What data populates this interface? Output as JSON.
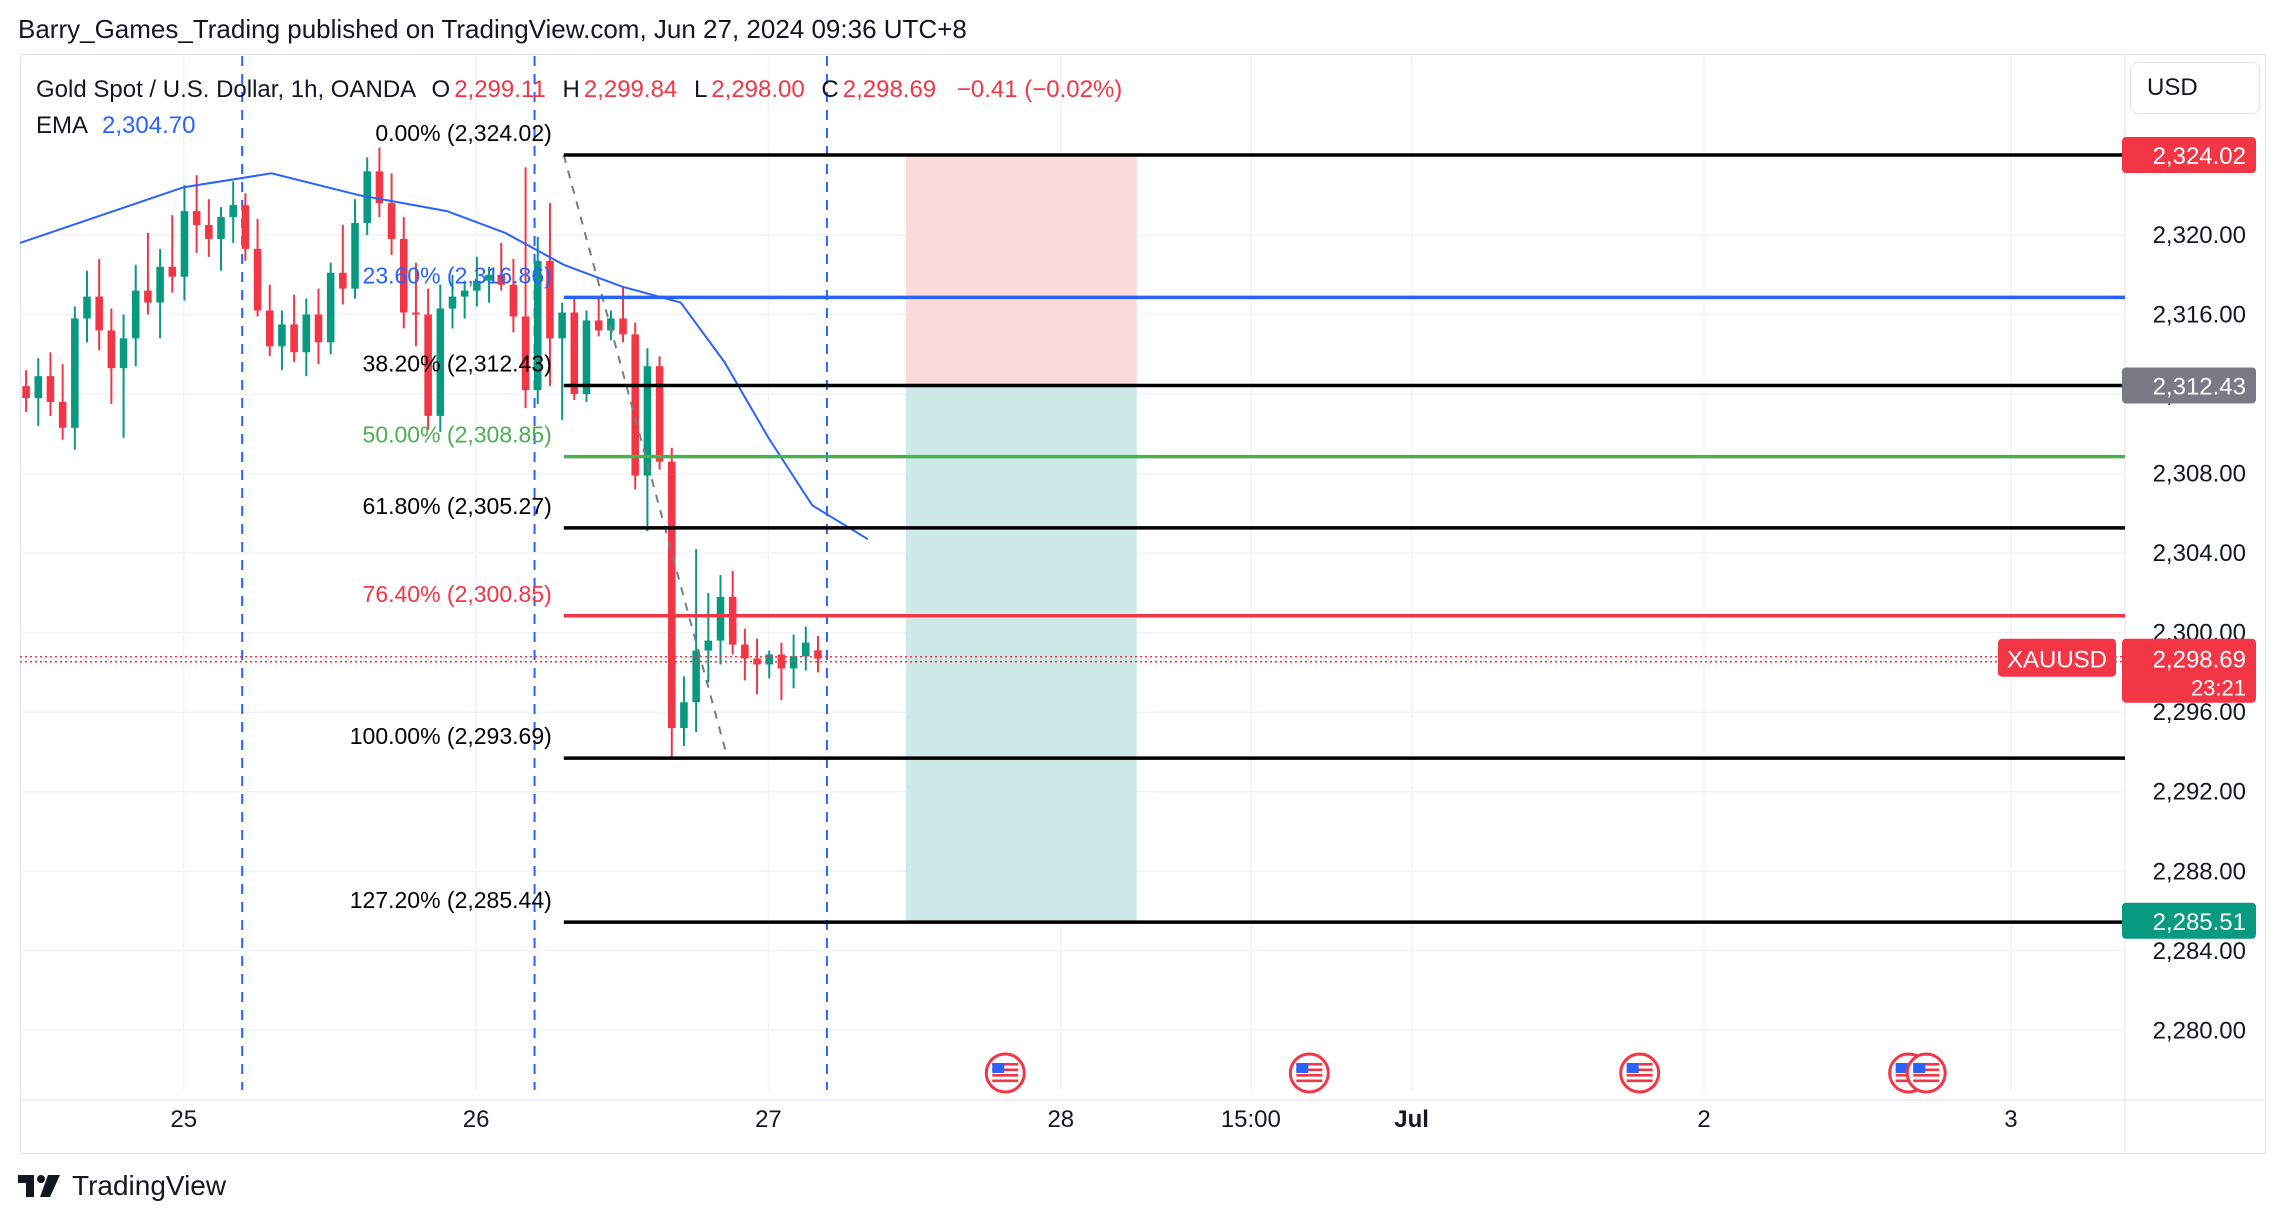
{
  "header": {
    "published_line": "Barry_Games_Trading published on TradingView.com, Jun 27, 2024 09:36 UTC+8"
  },
  "legend": {
    "symbol_line": "Gold Spot / U.S. Dollar, 1h, OANDA",
    "open_label": "O",
    "open_value": "2,299.11",
    "high_label": "H",
    "high_value": "2,299.84",
    "low_label": "L",
    "low_value": "2,298.00",
    "close_label": "C",
    "close_value": "2,298.69",
    "change": "−0.41 (−0.02%)",
    "ema_label": "EMA",
    "ema_value": "2,304.70"
  },
  "currency_button": {
    "label": "USD"
  },
  "colors": {
    "up": "#089981",
    "down": "#f23645",
    "ema": "#2962ff",
    "fib_black": "#000000",
    "fib_blue": "#2962ff",
    "fib_green": "#4caf50",
    "fib_red": "#f23645",
    "grid": "#f0f3fa",
    "dashed_vertical": "#2962ff",
    "stop_zone": "#fcdbda",
    "target_zone": "#cdeae8"
  },
  "footer": {
    "brand": "TradingView"
  },
  "chart_data": {
    "type": "candlestick",
    "symbol": "XAUUSD",
    "timeframe": "1h",
    "ylim": [
      2277,
      2329
    ],
    "y_ticks": [
      "2,280.00",
      "2,284.00",
      "2,288.00",
      "2,292.00",
      "2,296.00",
      "2,300.00",
      "2,304.00",
      "2,308.00",
      "2,312.00",
      "2,316.00",
      "2,320.00"
    ],
    "y_tick_values": [
      2280,
      2284,
      2288,
      2292,
      2296,
      2300,
      2304,
      2308,
      2312,
      2316,
      2320
    ],
    "x_ticks": [
      {
        "label": "25",
        "t": 25.0
      },
      {
        "label": "26",
        "t": 26.0
      },
      {
        "label": "27",
        "t": 27.0
      },
      {
        "label": "28",
        "t": 28.0
      },
      {
        "label": "15:00",
        "t": 28.65
      },
      {
        "label": "Jul",
        "t": 29.2
      },
      {
        "label": "2",
        "t": 30.2
      },
      {
        "label": "3",
        "t": 31.25
      }
    ],
    "x_range": [
      24.44,
      31.64
    ],
    "candles": [
      {
        "o": 2312.4,
        "h": 2313.2,
        "l": 2311.1,
        "c": 2311.8
      },
      {
        "o": 2311.8,
        "h": 2313.8,
        "l": 2310.4,
        "c": 2312.9
      },
      {
        "o": 2312.9,
        "h": 2314.1,
        "l": 2310.9,
        "c": 2311.6
      },
      {
        "o": 2311.6,
        "h": 2313.5,
        "l": 2309.7,
        "c": 2310.3
      },
      {
        "o": 2310.3,
        "h": 2316.4,
        "l": 2309.2,
        "c": 2315.8
      },
      {
        "o": 2315.8,
        "h": 2318.2,
        "l": 2314.6,
        "c": 2316.9
      },
      {
        "o": 2316.9,
        "h": 2318.8,
        "l": 2314.2,
        "c": 2315.2
      },
      {
        "o": 2315.2,
        "h": 2316.3,
        "l": 2311.5,
        "c": 2313.3
      },
      {
        "o": 2313.3,
        "h": 2316.0,
        "l": 2309.8,
        "c": 2314.8
      },
      {
        "o": 2314.8,
        "h": 2318.5,
        "l": 2313.4,
        "c": 2317.2
      },
      {
        "o": 2317.2,
        "h": 2320.1,
        "l": 2316.0,
        "c": 2316.6
      },
      {
        "o": 2316.6,
        "h": 2319.3,
        "l": 2314.8,
        "c": 2318.4
      },
      {
        "o": 2318.4,
        "h": 2321.0,
        "l": 2317.1,
        "c": 2317.9
      },
      {
        "o": 2317.9,
        "h": 2322.5,
        "l": 2316.7,
        "c": 2321.2
      },
      {
        "o": 2321.2,
        "h": 2323.0,
        "l": 2319.1,
        "c": 2320.5
      },
      {
        "o": 2320.5,
        "h": 2321.8,
        "l": 2318.9,
        "c": 2319.8
      },
      {
        "o": 2319.8,
        "h": 2321.4,
        "l": 2318.2,
        "c": 2320.9
      },
      {
        "o": 2320.9,
        "h": 2322.7,
        "l": 2319.6,
        "c": 2321.5
      },
      {
        "o": 2321.5,
        "h": 2322.1,
        "l": 2318.7,
        "c": 2319.3
      },
      {
        "o": 2319.3,
        "h": 2320.8,
        "l": 2315.9,
        "c": 2316.2
      },
      {
        "o": 2316.2,
        "h": 2317.5,
        "l": 2313.9,
        "c": 2314.4
      },
      {
        "o": 2314.4,
        "h": 2316.2,
        "l": 2313.2,
        "c": 2315.5
      },
      {
        "o": 2315.5,
        "h": 2317.0,
        "l": 2313.6,
        "c": 2314.1
      },
      {
        "o": 2314.1,
        "h": 2316.8,
        "l": 2312.9,
        "c": 2316.0
      },
      {
        "o": 2316.0,
        "h": 2317.3,
        "l": 2313.5,
        "c": 2314.6
      },
      {
        "o": 2314.6,
        "h": 2318.6,
        "l": 2314.0,
        "c": 2318.1
      },
      {
        "o": 2318.1,
        "h": 2320.5,
        "l": 2316.5,
        "c": 2317.3
      },
      {
        "o": 2317.3,
        "h": 2321.8,
        "l": 2316.8,
        "c": 2320.6
      },
      {
        "o": 2320.6,
        "h": 2323.9,
        "l": 2320.0,
        "c": 2323.2
      },
      {
        "o": 2323.2,
        "h": 2324.4,
        "l": 2320.9,
        "c": 2321.6
      },
      {
        "o": 2321.6,
        "h": 2323.1,
        "l": 2319.0,
        "c": 2319.8
      },
      {
        "o": 2319.8,
        "h": 2320.9,
        "l": 2315.3,
        "c": 2316.1
      },
      {
        "o": 2316.1,
        "h": 2318.6,
        "l": 2314.4,
        "c": 2316.0
      },
      {
        "o": 2316.0,
        "h": 2317.3,
        "l": 2310.2,
        "c": 2310.9
      },
      {
        "o": 2310.9,
        "h": 2317.5,
        "l": 2310.1,
        "c": 2316.3
      },
      {
        "o": 2316.3,
        "h": 2318.0,
        "l": 2315.3,
        "c": 2316.9
      },
      {
        "o": 2316.9,
        "h": 2317.7,
        "l": 2315.8,
        "c": 2317.2
      },
      {
        "o": 2317.2,
        "h": 2318.9,
        "l": 2316.4,
        "c": 2317.7
      },
      {
        "o": 2317.7,
        "h": 2318.4,
        "l": 2316.6,
        "c": 2318.0
      },
      {
        "o": 2318.0,
        "h": 2319.6,
        "l": 2317.2,
        "c": 2317.5
      },
      {
        "o": 2317.5,
        "h": 2318.8,
        "l": 2315.1,
        "c": 2315.9
      },
      {
        "o": 2315.9,
        "h": 2323.4,
        "l": 2311.3,
        "c": 2312.2
      },
      {
        "o": 2312.2,
        "h": 2319.9,
        "l": 2311.5,
        "c": 2318.7
      },
      {
        "o": 2318.7,
        "h": 2321.6,
        "l": 2312.4,
        "c": 2314.8
      },
      {
        "o": 2314.8,
        "h": 2316.6,
        "l": 2310.7,
        "c": 2316.1
      },
      {
        "o": 2316.1,
        "h": 2316.9,
        "l": 2311.7,
        "c": 2312.0
      },
      {
        "o": 2312.0,
        "h": 2316.2,
        "l": 2311.6,
        "c": 2315.7
      },
      {
        "o": 2315.7,
        "h": 2316.8,
        "l": 2314.9,
        "c": 2315.2
      },
      {
        "o": 2315.2,
        "h": 2316.2,
        "l": 2314.7,
        "c": 2315.8
      },
      {
        "o": 2315.8,
        "h": 2317.4,
        "l": 2314.6,
        "c": 2315.0
      },
      {
        "o": 2315.0,
        "h": 2315.6,
        "l": 2307.2,
        "c": 2307.9
      },
      {
        "o": 2307.9,
        "h": 2314.3,
        "l": 2305.1,
        "c": 2313.4
      },
      {
        "o": 2313.4,
        "h": 2313.9,
        "l": 2308.2,
        "c": 2308.6
      },
      {
        "o": 2308.6,
        "h": 2309.3,
        "l": 2293.7,
        "c": 2295.2
      },
      {
        "o": 2295.2,
        "h": 2297.8,
        "l": 2294.3,
        "c": 2296.5
      },
      {
        "o": 2296.5,
        "h": 2304.2,
        "l": 2295.0,
        "c": 2299.1
      },
      {
        "o": 2299.1,
        "h": 2302.0,
        "l": 2297.5,
        "c": 2299.6
      },
      {
        "o": 2299.6,
        "h": 2302.9,
        "l": 2298.4,
        "c": 2301.8
      },
      {
        "o": 2301.8,
        "h": 2303.1,
        "l": 2298.9,
        "c": 2299.4
      },
      {
        "o": 2299.4,
        "h": 2300.2,
        "l": 2297.6,
        "c": 2298.7
      },
      {
        "o": 2298.7,
        "h": 2299.7,
        "l": 2296.9,
        "c": 2298.4
      },
      {
        "o": 2298.4,
        "h": 2299.1,
        "l": 2297.7,
        "c": 2298.9
      },
      {
        "o": 2298.9,
        "h": 2299.5,
        "l": 2296.6,
        "c": 2298.2
      },
      {
        "o": 2298.2,
        "h": 2299.9,
        "l": 2297.2,
        "c": 2298.8
      },
      {
        "o": 2298.8,
        "h": 2300.3,
        "l": 2298.1,
        "c": 2299.5
      },
      {
        "o": 2299.11,
        "h": 2299.84,
        "l": 2298.0,
        "c": 2298.69
      }
    ],
    "candle_start_t": 24.44,
    "candle_step_t": 0.04167,
    "ema": {
      "name": "EMA",
      "points": [
        {
          "t": 24.44,
          "v": 2319.6
        },
        {
          "t": 24.7,
          "v": 2320.9
        },
        {
          "t": 25.0,
          "v": 2322.4
        },
        {
          "t": 25.3,
          "v": 2323.1
        },
        {
          "t": 25.6,
          "v": 2322.0
        },
        {
          "t": 25.9,
          "v": 2321.2
        },
        {
          "t": 26.1,
          "v": 2320.1
        },
        {
          "t": 26.3,
          "v": 2318.5
        },
        {
          "t": 26.5,
          "v": 2317.4
        },
        {
          "t": 26.7,
          "v": 2316.6
        },
        {
          "t": 26.85,
          "v": 2313.6
        },
        {
          "t": 27.0,
          "v": 2309.8
        },
        {
          "t": 27.15,
          "v": 2306.4
        },
        {
          "t": 27.34,
          "v": 2304.7
        }
      ]
    },
    "fibonacci": {
      "t_start": 26.3,
      "t_end": 31.64,
      "levels": [
        {
          "label": "0.00% (2,324.02)",
          "price": 2324.02,
          "color": "#000000"
        },
        {
          "label": "23.60% (2,316.86)",
          "price": 2316.86,
          "color": "#2962ff"
        },
        {
          "label": "38.20% (2,312.43)",
          "price": 2312.43,
          "color": "#000000"
        },
        {
          "label": "50.00% (2,308.85)",
          "price": 2308.85,
          "color": "#4caf50"
        },
        {
          "label": "61.80% (2,305.27)",
          "price": 2305.27,
          "color": "#000000"
        },
        {
          "label": "76.40% (2,300.85)",
          "price": 2300.85,
          "color": "#f23645"
        },
        {
          "label": "100.00% (2,293.69)",
          "price": 2293.69,
          "color": "#000000"
        },
        {
          "label": "127.20% (2,285.44)",
          "price": 2285.44,
          "color": "#000000"
        }
      ],
      "trend_line": {
        "from": {
          "t": 26.3,
          "v": 2324.02
        },
        "to": {
          "t": 26.86,
          "v": 2293.69
        }
      }
    },
    "position_box": {
      "t_from": 27.47,
      "t_to": 28.26,
      "stop_top": 2324.02,
      "entry": 2312.43,
      "target": 2285.51
    },
    "vertical_dashed_lines_t": [
      25.2,
      26.2,
      27.2
    ],
    "price_tags": [
      {
        "text": "2,324.02",
        "price": 2324.02,
        "bg": "#f23645",
        "fg": "#ffffff"
      },
      {
        "text": "2,312.43",
        "price": 2312.43,
        "bg": "#787b86",
        "fg": "#ffffff"
      },
      {
        "text": "2,285.51",
        "price": 2285.51,
        "bg": "#089981",
        "fg": "#ffffff"
      }
    ],
    "current_price": {
      "symbol": "XAUUSD",
      "price_text": "2,298.69",
      "price": 2298.69,
      "countdown": "23:21"
    },
    "event_flags_t": [
      27.81,
      28.85,
      29.98,
      30.9,
      30.96
    ]
  }
}
